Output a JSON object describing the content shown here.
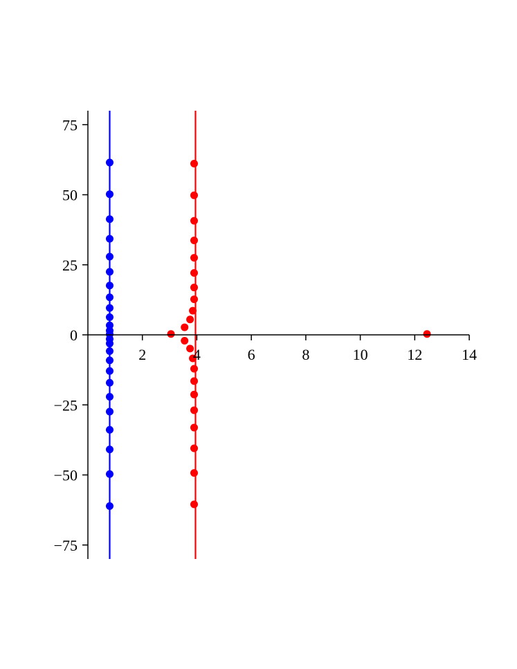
{
  "chart_data": {
    "type": "scatter",
    "title": "",
    "xlabel": "",
    "ylabel": "",
    "xlim": [
      0,
      14
    ],
    "ylim": [
      -80,
      80
    ],
    "grid": false,
    "legend": "none",
    "x_ticks": [
      2,
      4,
      6,
      8,
      10,
      12,
      14
    ],
    "y_ticks": [
      -75,
      -50,
      -25,
      0,
      25,
      50,
      75
    ],
    "x_tick_labels": [
      "2",
      "4",
      "6",
      "8",
      "10",
      "12",
      "14"
    ],
    "y_tick_labels": [
      "−75",
      "−50",
      "−25",
      "0",
      "25",
      "50",
      "75"
    ],
    "vertical_lines": [
      {
        "x": 0.8,
        "color": "#0000ff"
      },
      {
        "x": 3.95,
        "color": "#ff0000"
      }
    ],
    "series": [
      {
        "color": "#0000ff",
        "points": [
          [
            0.8,
            61.5
          ],
          [
            0.8,
            50.2
          ],
          [
            0.8,
            41.3
          ],
          [
            0.8,
            34.3
          ],
          [
            0.8,
            27.9
          ],
          [
            0.8,
            22.5
          ],
          [
            0.8,
            17.6
          ],
          [
            0.8,
            13.4
          ],
          [
            0.8,
            9.6
          ],
          [
            0.8,
            6.3
          ],
          [
            0.8,
            3.4
          ],
          [
            0.8,
            1.5
          ],
          [
            0.8,
            0.2
          ],
          [
            0.8,
            -1.5
          ],
          [
            0.8,
            -3.1
          ],
          [
            0.8,
            -5.8
          ],
          [
            0.8,
            -9.1
          ],
          [
            0.8,
            -12.9
          ],
          [
            0.8,
            -17.1
          ],
          [
            0.8,
            -22.1
          ],
          [
            0.8,
            -27.4
          ],
          [
            0.8,
            -33.9
          ],
          [
            0.8,
            -40.9
          ],
          [
            0.8,
            -49.7
          ],
          [
            0.8,
            -61.1
          ]
        ]
      },
      {
        "color": "#ff0000",
        "points": [
          [
            3.9,
            61.1
          ],
          [
            3.9,
            49.8
          ],
          [
            3.9,
            40.7
          ],
          [
            3.9,
            33.7
          ],
          [
            3.9,
            27.5
          ],
          [
            3.9,
            22.1
          ],
          [
            3.9,
            16.9
          ],
          [
            3.9,
            12.7
          ],
          [
            3.85,
            8.6
          ],
          [
            3.75,
            5.5
          ],
          [
            3.55,
            2.7
          ],
          [
            3.05,
            0.3
          ],
          [
            3.55,
            -2.1
          ],
          [
            3.75,
            -4.9
          ],
          [
            3.85,
            -8.4
          ],
          [
            3.9,
            -12.1
          ],
          [
            3.9,
            -16.5
          ],
          [
            3.9,
            -21.3
          ],
          [
            3.9,
            -26.9
          ],
          [
            3.9,
            -33.1
          ],
          [
            3.9,
            -40.5
          ],
          [
            3.9,
            -49.3
          ],
          [
            3.9,
            -60.5
          ],
          [
            12.45,
            0.3
          ]
        ]
      }
    ]
  }
}
